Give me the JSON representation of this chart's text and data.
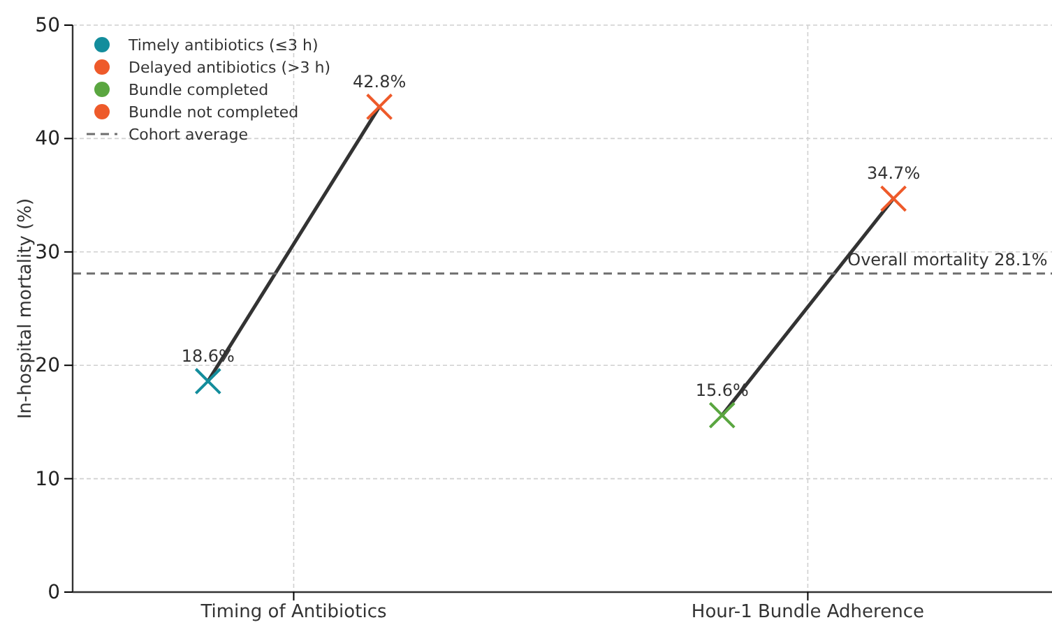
{
  "chart_data": {
    "type": "scatter",
    "ylabel": "In-hospital mortality (%)",
    "categories": [
      "Timing of Antibiotics",
      "Hour-1 Bundle Adherence"
    ],
    "ylim": [
      0,
      50
    ],
    "yticks": [
      0,
      10,
      20,
      30,
      40,
      50
    ],
    "grid": true,
    "legend": "top left",
    "marker": "cross",
    "series": [
      {
        "name": "Timely antibiotics (≤3 h)",
        "color": "#138d9c",
        "values": [
          18.6,
          null
        ],
        "value_labels": [
          "18.6%",
          null
        ]
      },
      {
        "name": "Delayed antibiotics (>3 h)",
        "color": "#ee5a2a",
        "values": [
          42.8,
          null
        ],
        "value_labels": [
          "42.8%",
          null
        ]
      },
      {
        "name": "Bundle completed",
        "color": "#5aa640",
        "values": [
          null,
          15.6
        ],
        "value_labels": [
          null,
          "15.6%"
        ]
      },
      {
        "name": "Bundle not completed",
        "color": "#ee5a2a",
        "values": [
          null,
          34.7
        ],
        "value_labels": [
          null,
          "34.7%"
        ]
      }
    ],
    "ref_lines": [
      {
        "axis": "y",
        "value": 28.1,
        "label": "Cohort average",
        "color": "#6e6e6e",
        "line_style": "dashed"
      }
    ],
    "annotations": [
      {
        "text": "Overall mortality 28.1%",
        "x": "Hour-1 Bundle Adherence",
        "y": 28.1
      }
    ]
  }
}
